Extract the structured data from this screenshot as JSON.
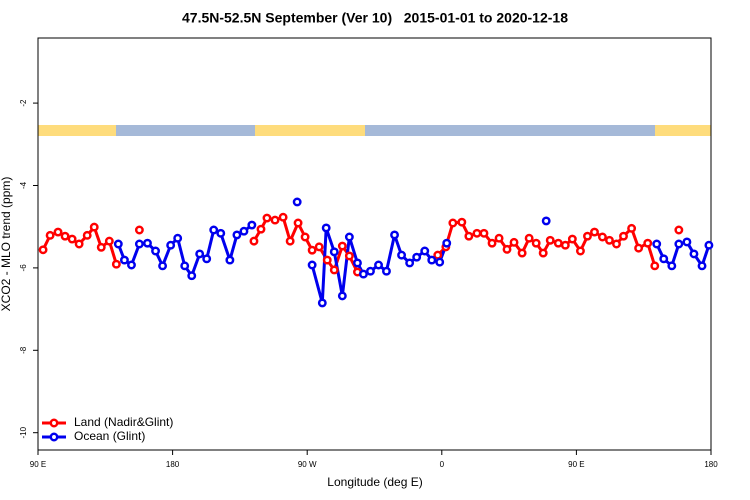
{
  "chart_data": {
    "type": "line",
    "title": "47.5N-52.5N September (Ver 10)   2015-01-01 to 2020-12-18",
    "xlabel": "Longitude (deg E)",
    "ylabel": "XCO2 - MLO trend (ppm)",
    "xlim": [
      90,
      540
    ],
    "xticks": [
      {
        "value": 90,
        "label": "90 E"
      },
      {
        "value": 180,
        "label": "180"
      },
      {
        "value": 270,
        "label": "90 W"
      },
      {
        "value": 360,
        "label": "0"
      },
      {
        "value": 450,
        "label": "90 E"
      },
      {
        "value": 540,
        "label": "180"
      }
    ],
    "ylim": [
      -10.42,
      -0.42
    ],
    "yticks": [
      -2,
      -4,
      -6,
      -8,
      -10
    ],
    "legend": "bottomleft",
    "series": [
      {
        "name": "Land (Nadir&Glint)",
        "color": "#ff0000",
        "x": [
          93.4,
          98.1,
          103.4,
          108.1,
          112.8,
          117.5,
          122.9,
          127.6,
          132.3,
          137.7,
          142.4,
          null,
          157.8,
          null,
          234.4,
          239.1,
          243.1,
          248.5,
          253.9,
          258.6,
          263.9,
          268.6,
          273.3,
          278.0,
          283.4,
          288.1,
          293.5,
          298.2,
          303.6,
          null,
          357.3,
          362.7,
          367.4,
          373.4,
          378.1,
          383.5,
          388.2,
          393.6,
          398.3,
          403.6,
          408.3,
          413.7,
          418.4,
          423.1,
          427.8,
          432.5,
          437.9,
          442.6,
          447.3,
          452.7,
          457.4,
          462.1,
          467.4,
          472.1,
          476.8,
          481.5,
          486.9,
          491.6,
          497.7,
          502.4,
          null,
          518.5
        ],
        "values": [
          -5.56,
          -5.21,
          -5.13,
          -5.23,
          -5.3,
          -5.42,
          -5.21,
          -5.01,
          -5.5,
          -5.35,
          -5.91,
          null,
          -5.08,
          null,
          -5.35,
          -5.06,
          -4.79,
          -4.84,
          -4.77,
          -5.35,
          -4.91,
          -5.25,
          -5.57,
          -5.49,
          -5.81,
          -6.05,
          -5.47,
          -5.71,
          -6.1,
          null,
          -5.69,
          -5.49,
          -4.91,
          -4.89,
          -5.23,
          -5.16,
          -5.16,
          -5.4,
          -5.28,
          -5.55,
          -5.38,
          -5.64,
          -5.28,
          -5.4,
          -5.64,
          -5.33,
          -5.4,
          -5.45,
          -5.3,
          -5.59,
          -5.23,
          -5.13,
          -5.25,
          -5.33,
          -5.42,
          -5.23,
          -5.04,
          -5.52,
          -5.4,
          -5.95,
          null,
          -5.08
        ]
      },
      {
        "name": "Ocean (Glint)",
        "color": "#0000ee",
        "x": [
          143.7,
          147.8,
          152.5,
          157.8,
          163.2,
          168.6,
          173.3,
          178.7,
          183.4,
          188.1,
          192.8,
          198.1,
          202.8,
          207.5,
          212.2,
          218.3,
          223.0,
          227.7,
          233.0,
          null,
          263.3,
          null,
          273.3,
          280.1,
          282.7,
          288.1,
          293.5,
          298.2,
          303.6,
          307.6,
          312.3,
          317.7,
          323.0,
          328.4,
          333.1,
          338.5,
          343.2,
          348.6,
          353.3,
          358.6,
          363.3,
          null,
          429.8,
          null,
          503.7,
          508.4,
          513.8,
          518.5,
          523.9,
          528.6,
          534.0,
          538.6
        ],
        "values": [
          -5.42,
          -5.81,
          -5.93,
          -5.42,
          -5.4,
          -5.59,
          -5.95,
          -5.45,
          -5.28,
          -5.95,
          -6.19,
          -5.66,
          -5.78,
          -5.08,
          -5.16,
          -5.81,
          -5.2,
          -5.11,
          -4.96,
          null,
          -4.4,
          null,
          -5.93,
          -6.85,
          -5.03,
          -5.61,
          -6.68,
          -5.25,
          -5.88,
          -6.15,
          -6.08,
          -5.93,
          -6.08,
          -5.2,
          -5.69,
          -5.88,
          -5.74,
          -5.59,
          -5.81,
          -5.86,
          -5.4,
          null,
          -4.86,
          null,
          -5.42,
          -5.78,
          -5.95,
          -5.42,
          -5.37,
          -5.66,
          -5.95,
          -5.45
        ]
      }
    ]
  }
}
